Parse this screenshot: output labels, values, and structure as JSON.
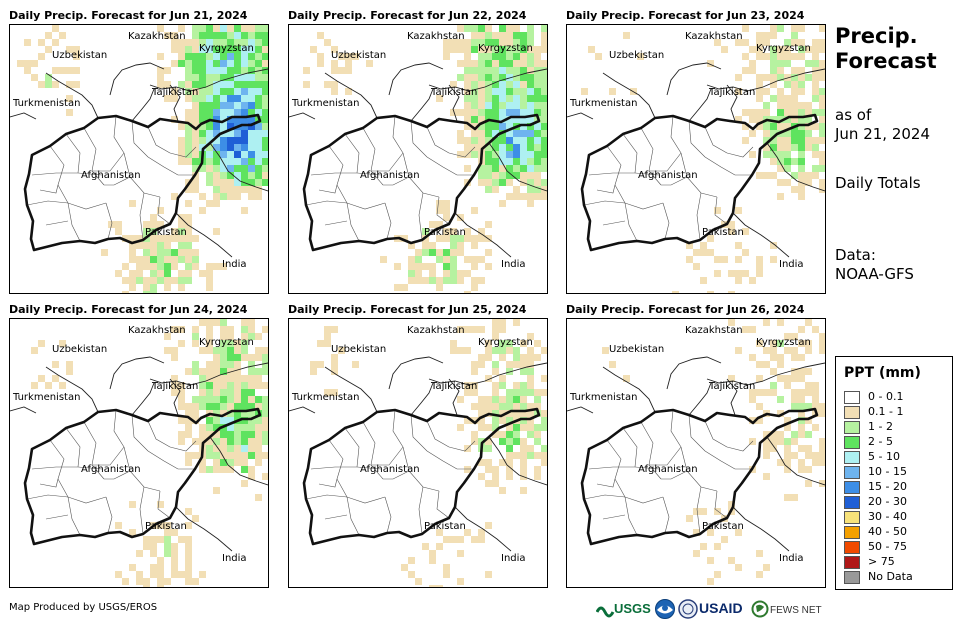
{
  "panels": [
    {
      "title": "Daily Precip. Forecast for Jun 21, 2024",
      "intensity": 1.0
    },
    {
      "title": "Daily Precip. Forecast for Jun 22, 2024",
      "intensity": 0.8
    },
    {
      "title": "Daily Precip. Forecast for Jun 23, 2024",
      "intensity": 0.45
    },
    {
      "title": "Daily Precip. Forecast for Jun 24, 2024",
      "intensity": 0.55
    },
    {
      "title": "Daily Precip. Forecast for Jun 25, 2024",
      "intensity": 0.4
    },
    {
      "title": "Daily Precip. Forecast for Jun 26, 2024",
      "intensity": 0.3
    }
  ],
  "map_labels": {
    "kazakhstan": "Kazakhstan",
    "uzbekistan": "Uzbekistan",
    "kyrgyzstan": "Kyrgyzstan",
    "tajikistan": "Tajikistan",
    "turkmenistan": "Turkmenistan",
    "afghanistan": "Afghanistan",
    "pakistan": "Pakistan",
    "india": "India"
  },
  "side": {
    "title_line1": "Precip.",
    "title_line2": "Forecast",
    "as_of_line1": "as of",
    "as_of_line2": "Jun 21, 2024",
    "totals": "Daily Totals",
    "data_line1": "Data:",
    "data_line2": "NOAA-GFS"
  },
  "legend": {
    "title": "PPT (mm)",
    "items": [
      {
        "label": "0 - 0.1",
        "color": "#ffffff"
      },
      {
        "label": "0.1 - 1",
        "color": "#f2dfb5"
      },
      {
        "label": "1 - 2",
        "color": "#b6f2a0"
      },
      {
        "label": "2 - 5",
        "color": "#5fe35f"
      },
      {
        "label": "5 - 10",
        "color": "#aef0f2"
      },
      {
        "label": "10 - 15",
        "color": "#6eb4ef"
      },
      {
        "label": "15 - 20",
        "color": "#3d8ee6"
      },
      {
        "label": "20 - 30",
        "color": "#1f5fd6"
      },
      {
        "label": "30 - 40",
        "color": "#f7e27a"
      },
      {
        "label": "40 - 50",
        "color": "#f5a000"
      },
      {
        "label": "50 - 75",
        "color": "#f04a00"
      },
      {
        "label": "> 75",
        "color": "#b01818"
      },
      {
        "label": "No Data",
        "color": "#999999"
      }
    ]
  },
  "footer": {
    "credit": "Map Produced by USGS/EROS",
    "usgs": "USGS",
    "usaid": "USAID",
    "fewsnet": "FEWS NET"
  }
}
